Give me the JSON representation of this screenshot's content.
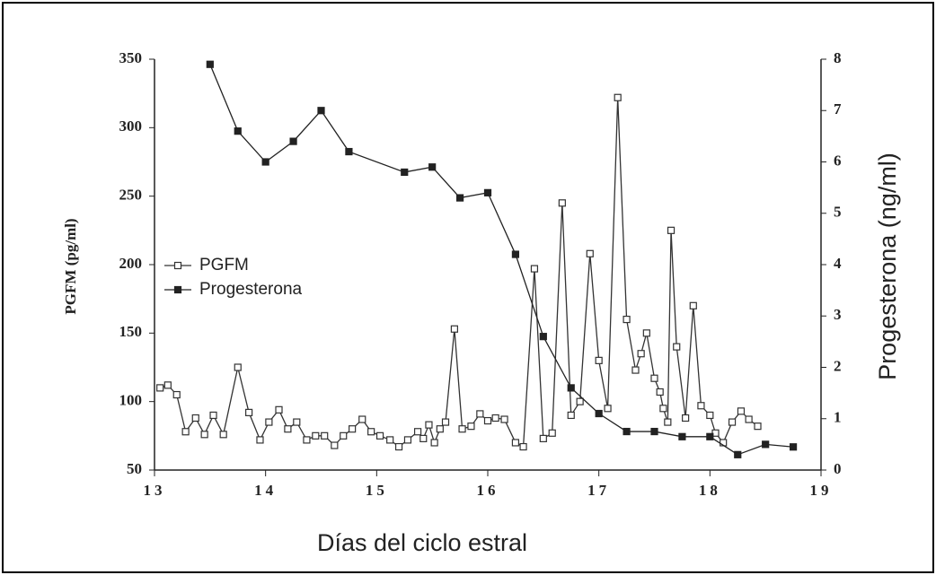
{
  "chart_data": {
    "type": "line",
    "x_label": "Días del ciclo estral",
    "y_label": "PGFM (pg/ml)",
    "y2_label": "Progesterona (ng/ml)",
    "xlim": [
      13,
      19
    ],
    "xticks": [
      13,
      14,
      15,
      16,
      17,
      18,
      19
    ],
    "ylim": [
      50,
      350
    ],
    "yticks": [
      50,
      100,
      150,
      200,
      250,
      300,
      350
    ],
    "y2lim": [
      0,
      8
    ],
    "y2ticks": [
      0,
      1,
      2,
      3,
      4,
      5,
      6,
      7,
      8
    ],
    "legend": "left",
    "series": [
      {
        "name": "PGFM",
        "color": "#333333",
        "marker": "open-square",
        "x": [
          13.05,
          13.12,
          13.2,
          13.28,
          13.37,
          13.45,
          13.53,
          13.62,
          13.75,
          13.85,
          13.95,
          14.03,
          14.12,
          14.2,
          14.28,
          14.37,
          14.45,
          14.53,
          14.62,
          14.7,
          14.78,
          14.87,
          14.95,
          15.03,
          15.12,
          15.2,
          15.28,
          15.37,
          15.42,
          15.47,
          15.52,
          15.57,
          15.62,
          15.7,
          15.77,
          15.85,
          15.93,
          16.0,
          16.07,
          16.15,
          16.25,
          16.32,
          16.42,
          16.5,
          16.58,
          16.67,
          16.75,
          16.83,
          16.92,
          17.0,
          17.08,
          17.17,
          17.25,
          17.33,
          17.38,
          17.43,
          17.5,
          17.55,
          17.58,
          17.62,
          17.65,
          17.7,
          17.78,
          17.85,
          17.92,
          18.0,
          18.05,
          18.12,
          18.2,
          18.28,
          18.35,
          18.43
        ],
        "values": [
          110,
          112,
          105,
          78,
          88,
          76,
          90,
          76,
          125,
          92,
          72,
          85,
          94,
          80,
          85,
          72,
          75,
          75,
          68,
          75,
          80,
          87,
          78,
          75,
          72,
          67,
          72,
          78,
          73,
          83,
          70,
          80,
          85,
          153,
          80,
          82,
          91,
          86,
          88,
          87,
          70,
          67,
          197,
          73,
          77,
          245,
          90,
          100,
          208,
          130,
          95,
          322,
          160,
          123,
          135,
          150,
          117,
          107,
          95,
          85,
          225,
          140,
          88,
          170,
          97,
          90,
          77,
          70,
          85,
          93,
          87,
          82
        ]
      },
      {
        "name": "Progesterona",
        "color": "#222222",
        "marker": "filled-square",
        "axis": "y2",
        "x": [
          13.5,
          13.75,
          14.0,
          14.25,
          14.5,
          14.75,
          15.25,
          15.5,
          15.75,
          16.0,
          16.25,
          16.5,
          16.75,
          17.0,
          17.25,
          17.5,
          17.75,
          18.0,
          18.25,
          18.5,
          18.75
        ],
        "values": [
          7.9,
          6.6,
          6.0,
          6.4,
          7.0,
          6.2,
          5.8,
          5.9,
          5.3,
          5.4,
          4.2,
          2.6,
          1.6,
          1.1,
          0.75,
          0.75,
          0.65,
          0.65,
          0.3,
          0.5,
          0.45
        ]
      }
    ]
  }
}
